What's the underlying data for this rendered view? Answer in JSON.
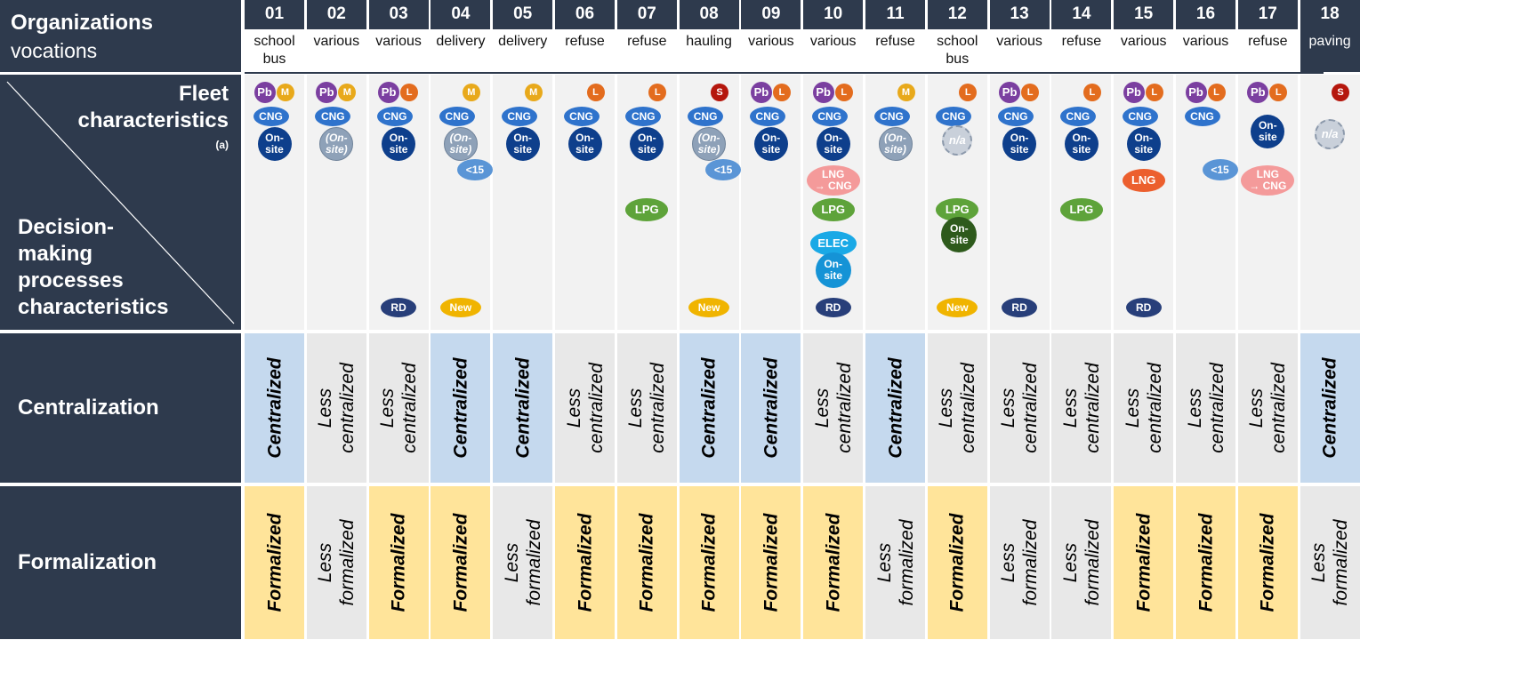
{
  "header": {
    "organizations_label": "Organizations",
    "vocations_label": "vocations"
  },
  "side_labels": {
    "fleet_line1": "Fleet",
    "fleet_line2": "characteristics",
    "fleet_note": "(a)",
    "decision_line1": "Decision-",
    "decision_line2": "making",
    "decision_line3": "processes",
    "decision_line4": "characteristics",
    "centralization": "Centralization",
    "formalization": "Formalization"
  },
  "colors": {
    "header_bg": "#2e3a4d",
    "cell_gray": "#e8e8e8",
    "centralized_blue": "#c5d9ee",
    "formalized_yellow": "#ffe49a",
    "fleet_bg": "#f2f2f2"
  },
  "badge_types": {
    "Pb": {
      "shape": "circle",
      "bg": "#7b3fa0"
    },
    "M": {
      "shape": "circle",
      "bg": "#e8a91b"
    },
    "L": {
      "shape": "circle",
      "bg": "#e36c1e"
    },
    "S": {
      "shape": "circle",
      "bg": "#b5170d"
    },
    "CNG": {
      "shape": "oval",
      "bg": "#2f73cc"
    },
    "On-site": {
      "shape": "circle",
      "bg": "#0e3f8c"
    },
    "(On-site)": {
      "shape": "circle",
      "bg": "#8ea1b8"
    },
    "n/a": {
      "shape": "circle",
      "bg": "#c9d0da"
    },
    "<15": {
      "shape": "oval",
      "bg": "#5a95d6"
    },
    "LPG": {
      "shape": "oval",
      "bg": "#5ea33a"
    },
    "LPG On-site": {
      "shape": "circle",
      "bg": "#2e5a1c"
    },
    "LNG": {
      "shape": "oval",
      "bg": "#ec5f2e"
    },
    "LNG → CNG": {
      "shape": "oval",
      "bg": "#f49a9a"
    },
    "ELEC": {
      "shape": "oval",
      "bg": "#1aa9e6"
    },
    "ELEC On-site": {
      "shape": "circle",
      "bg": "#1593d6"
    },
    "RD": {
      "shape": "oval",
      "bg": "#283f7a"
    },
    "New": {
      "shape": "oval",
      "bg": "#f0b400"
    }
  },
  "organizations": [
    {
      "id": "01",
      "vocation": "school bus",
      "fleet": [
        "Pb",
        "M",
        "CNG",
        "On-site"
      ],
      "decision": [],
      "centralization": "Centralized",
      "formalization": "Formalized"
    },
    {
      "id": "02",
      "vocation": "various",
      "fleet": [
        "Pb",
        "M",
        "CNG",
        "(On-site)"
      ],
      "decision": [],
      "centralization": "Less centralized",
      "formalization": "Less formalized"
    },
    {
      "id": "03",
      "vocation": "various",
      "fleet": [
        "Pb",
        "L",
        "CNG",
        "On-site"
      ],
      "decision": [
        "RD"
      ],
      "centralization": "Less centralized",
      "formalization": "Formalized"
    },
    {
      "id": "04",
      "vocation": "delivery",
      "fleet": [
        "M",
        "CNG",
        "(On-site)",
        "<15"
      ],
      "decision": [
        "New"
      ],
      "centralization": "Centralized",
      "formalization": "Formalized"
    },
    {
      "id": "05",
      "vocation": "delivery",
      "fleet": [
        "M",
        "CNG",
        "On-site"
      ],
      "decision": [],
      "centralization": "Centralized",
      "formalization": "Less formalized"
    },
    {
      "id": "06",
      "vocation": "refuse",
      "fleet": [
        "L",
        "CNG",
        "On-site"
      ],
      "decision": [],
      "centralization": "Less centralized",
      "formalization": "Formalized"
    },
    {
      "id": "07",
      "vocation": "refuse",
      "fleet": [
        "L",
        "CNG",
        "On-site",
        "LPG"
      ],
      "decision": [],
      "centralization": "Less centralized",
      "formalization": "Formalized"
    },
    {
      "id": "08",
      "vocation": "hauling",
      "fleet": [
        "S",
        "CNG",
        "(On-site)",
        "<15"
      ],
      "decision": [
        "New"
      ],
      "centralization": "Centralized",
      "formalization": "Formalized"
    },
    {
      "id": "09",
      "vocation": "various",
      "fleet": [
        "Pb",
        "L",
        "CNG",
        "On-site"
      ],
      "decision": [],
      "centralization": "Centralized",
      "formalization": "Formalized"
    },
    {
      "id": "10",
      "vocation": "various",
      "fleet": [
        "Pb",
        "L",
        "CNG",
        "On-site",
        "LNG → CNG",
        "LPG",
        "ELEC",
        "ELEC On-site"
      ],
      "decision": [
        "RD"
      ],
      "centralization": "Less centralized",
      "formalization": "Formalized"
    },
    {
      "id": "11",
      "vocation": "refuse",
      "fleet": [
        "M",
        "CNG",
        "(On-site)"
      ],
      "decision": [],
      "centralization": "Centralized",
      "formalization": "Less formalized"
    },
    {
      "id": "12",
      "vocation": "school bus",
      "fleet": [
        "L",
        "CNG",
        "n/a",
        "LPG",
        "LPG On-site"
      ],
      "decision": [
        "New"
      ],
      "centralization": "Less centralized",
      "formalization": "Formalized"
    },
    {
      "id": "13",
      "vocation": "various",
      "fleet": [
        "Pb",
        "L",
        "CNG",
        "On-site"
      ],
      "decision": [
        "RD"
      ],
      "centralization": "Less centralized",
      "formalization": "Less formalized"
    },
    {
      "id": "14",
      "vocation": "refuse",
      "fleet": [
        "L",
        "CNG",
        "On-site",
        "LPG"
      ],
      "decision": [],
      "centralization": "Less centralized",
      "formalization": "Less formalized"
    },
    {
      "id": "15",
      "vocation": "various",
      "fleet": [
        "Pb",
        "L",
        "CNG",
        "On-site",
        "LNG"
      ],
      "decision": [
        "RD"
      ],
      "centralization": "Less centralized",
      "formalization": "Formalized"
    },
    {
      "id": "16",
      "vocation": "various",
      "fleet": [
        "Pb",
        "L",
        "CNG",
        "<15"
      ],
      "decision": [],
      "centralization": "Less centralized",
      "formalization": "Formalized"
    },
    {
      "id": "17",
      "vocation": "refuse",
      "fleet": [
        "Pb",
        "L",
        "On-site",
        "LNG → CNG"
      ],
      "decision": [],
      "centralization": "Less centralized",
      "formalization": "Formalized"
    },
    {
      "id": "18",
      "vocation": "paving",
      "fleet": [
        "S",
        "n/a"
      ],
      "decision": [],
      "centralization": "Centralized",
      "formalization": "Less formalized"
    }
  ]
}
